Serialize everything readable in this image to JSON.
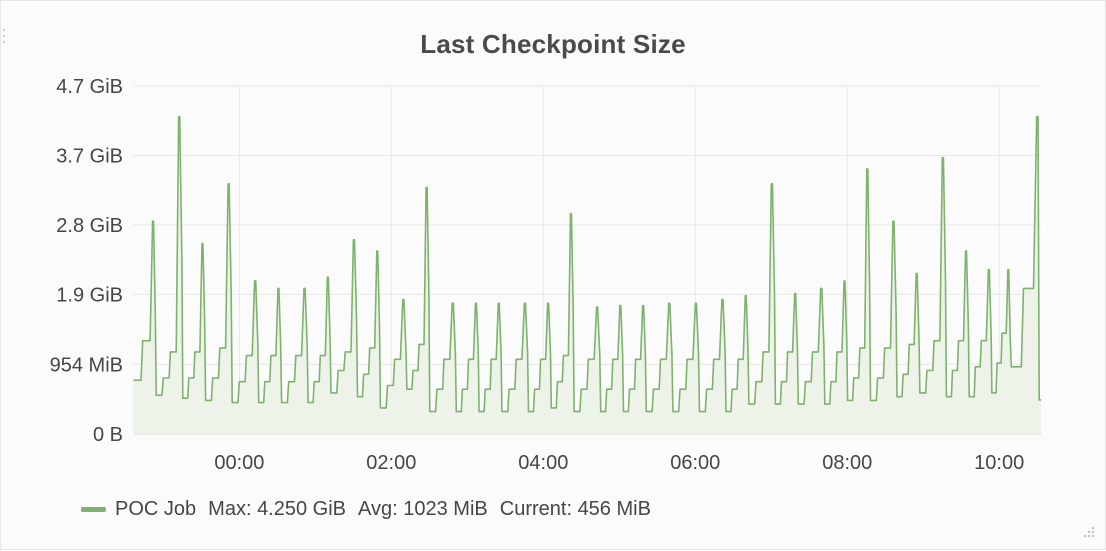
{
  "panel": {
    "title": "Last Checkpoint Size"
  },
  "legend": {
    "series_name": "POC Job",
    "max_label": "Max:",
    "max_value": "4.250 GiB",
    "avg_label": "Avg:",
    "avg_value": "1023 MiB",
    "current_label": "Current:",
    "current_value": "456 MiB"
  },
  "colors": {
    "series_line": "#7eb26d",
    "series_fill": "#eef3ea",
    "grid": "#e8e8e8",
    "axis_text": "#464646"
  },
  "chart_data": {
    "type": "area",
    "title": "Last Checkpoint Size",
    "x_unit": "hours relative to midnight",
    "y_unit": "GiB",
    "xlim": [
      -1.4,
      10.55
    ],
    "ylim": [
      0,
      4.7
    ],
    "grid": true,
    "legend_position": "bottom",
    "y_ticks": [
      {
        "value": 0,
        "label": "0 B"
      },
      {
        "value": 0.9316,
        "label": "954 MiB"
      },
      {
        "value": 1.87,
        "label": "1.9 GiB"
      },
      {
        "value": 2.8,
        "label": "2.8 GiB"
      },
      {
        "value": 3.73,
        "label": "3.7 GiB"
      },
      {
        "value": 4.66,
        "label": "4.7 GiB"
      }
    ],
    "x_ticks": [
      {
        "value": 0,
        "label": "00:00"
      },
      {
        "value": 2,
        "label": "02:00"
      },
      {
        "value": 4,
        "label": "04:00"
      },
      {
        "value": 6,
        "label": "06:00"
      },
      {
        "value": 8,
        "label": "08:00"
      },
      {
        "value": 10,
        "label": "10:00"
      }
    ],
    "series": [
      {
        "name": "POC Job",
        "cycles": [
          {
            "start": -1.4,
            "end": -1.1,
            "base": 0.72,
            "steps": [
              1.25
            ],
            "peak": 2.85
          },
          {
            "start": -1.1,
            "end": -0.75,
            "base": 0.52,
            "steps": [
              0.75,
              1.1
            ],
            "peak": 4.25
          },
          {
            "start": -0.75,
            "end": -0.45,
            "base": 0.48,
            "steps": [
              0.75,
              1.1
            ],
            "peak": 2.55
          },
          {
            "start": -0.45,
            "end": -0.1,
            "base": 0.45,
            "steps": [
              0.75,
              1.15
            ],
            "peak": 3.35
          },
          {
            "start": -0.1,
            "end": 0.25,
            "base": 0.42,
            "steps": [
              0.7,
              1.05
            ],
            "peak": 2.05
          },
          {
            "start": 0.25,
            "end": 0.55,
            "base": 0.42,
            "steps": [
              0.7,
              1.05
            ],
            "peak": 1.95
          },
          {
            "start": 0.55,
            "end": 0.9,
            "base": 0.42,
            "steps": [
              0.7,
              1.05
            ],
            "peak": 1.95
          },
          {
            "start": 0.9,
            "end": 1.2,
            "base": 0.42,
            "steps": [
              0.7,
              1.05
            ],
            "peak": 2.1
          },
          {
            "start": 1.2,
            "end": 1.55,
            "base": 0.55,
            "steps": [
              0.85,
              1.1
            ],
            "peak": 2.6
          },
          {
            "start": 1.55,
            "end": 1.85,
            "base": 0.5,
            "steps": [
              0.8,
              1.15
            ],
            "peak": 2.45
          },
          {
            "start": 1.85,
            "end": 2.2,
            "base": 0.35,
            "steps": [
              0.65,
              1.0
            ],
            "peak": 1.8
          },
          {
            "start": 2.2,
            "end": 2.5,
            "base": 0.6,
            "steps": [
              0.85,
              1.2
            ],
            "peak": 3.3
          },
          {
            "start": 2.5,
            "end": 2.85,
            "base": 0.3,
            "steps": [
              0.6,
              1.0
            ],
            "peak": 1.75
          },
          {
            "start": 2.85,
            "end": 3.15,
            "base": 0.3,
            "steps": [
              0.6,
              1.0
            ],
            "peak": 1.75
          },
          {
            "start": 3.15,
            "end": 3.45,
            "base": 0.3,
            "steps": [
              0.6,
              1.0
            ],
            "peak": 1.75
          },
          {
            "start": 3.45,
            "end": 3.8,
            "base": 0.3,
            "steps": [
              0.6,
              1.0
            ],
            "peak": 1.75
          },
          {
            "start": 3.8,
            "end": 4.1,
            "base": 0.3,
            "steps": [
              0.6,
              1.0
            ],
            "peak": 1.75
          },
          {
            "start": 4.1,
            "end": 4.4,
            "base": 0.35,
            "steps": [
              0.7,
              1.05
            ],
            "peak": 2.95
          },
          {
            "start": 4.4,
            "end": 4.75,
            "base": 0.3,
            "steps": [
              0.6,
              1.0
            ],
            "peak": 1.7
          },
          {
            "start": 4.75,
            "end": 5.05,
            "base": 0.3,
            "steps": [
              0.6,
              1.0
            ],
            "peak": 1.72
          },
          {
            "start": 5.05,
            "end": 5.35,
            "base": 0.3,
            "steps": [
              0.6,
              1.0
            ],
            "peak": 1.72
          },
          {
            "start": 5.35,
            "end": 5.7,
            "base": 0.3,
            "steps": [
              0.6,
              1.0
            ],
            "peak": 1.75
          },
          {
            "start": 5.7,
            "end": 6.05,
            "base": 0.3,
            "steps": [
              0.6,
              1.0
            ],
            "peak": 1.75
          },
          {
            "start": 6.05,
            "end": 6.4,
            "base": 0.3,
            "steps": [
              0.6,
              1.0
            ],
            "peak": 1.8
          },
          {
            "start": 6.4,
            "end": 6.7,
            "base": 0.3,
            "steps": [
              0.6,
              1.0
            ],
            "peak": 1.85
          },
          {
            "start": 6.7,
            "end": 7.05,
            "base": 0.4,
            "steps": [
              0.7,
              1.1
            ],
            "peak": 3.35
          },
          {
            "start": 7.05,
            "end": 7.35,
            "base": 0.4,
            "steps": [
              0.7,
              1.1
            ],
            "peak": 1.88
          },
          {
            "start": 7.35,
            "end": 7.7,
            "base": 0.4,
            "steps": [
              0.7,
              1.1
            ],
            "peak": 1.95
          },
          {
            "start": 7.7,
            "end": 8.0,
            "base": 0.4,
            "steps": [
              0.7,
              1.1
            ],
            "peak": 2.05
          },
          {
            "start": 8.0,
            "end": 8.3,
            "base": 0.45,
            "steps": [
              0.75,
              1.15
            ],
            "peak": 3.55
          },
          {
            "start": 8.3,
            "end": 8.65,
            "base": 0.45,
            "steps": [
              0.75,
              1.15
            ],
            "peak": 2.85
          },
          {
            "start": 8.65,
            "end": 8.95,
            "base": 0.5,
            "steps": [
              0.8,
              1.2
            ],
            "peak": 2.15
          },
          {
            "start": 8.95,
            "end": 9.3,
            "base": 0.55,
            "steps": [
              0.85,
              1.25
            ],
            "peak": 3.7
          },
          {
            "start": 9.3,
            "end": 9.6,
            "base": 0.5,
            "steps": [
              0.85,
              1.25
            ],
            "peak": 2.45
          },
          {
            "start": 9.6,
            "end": 9.9,
            "base": 0.5,
            "steps": [
              0.9,
              1.25
            ],
            "peak": 2.2
          },
          {
            "start": 9.9,
            "end": 10.15,
            "base": 0.55,
            "steps": [
              0.95,
              1.35
            ],
            "peak": 2.2
          },
          {
            "start": 10.15,
            "end": 10.55,
            "base": 0.9,
            "steps": [
              1.95
            ],
            "peak": 4.25,
            "tail": 0.456
          }
        ]
      }
    ]
  }
}
